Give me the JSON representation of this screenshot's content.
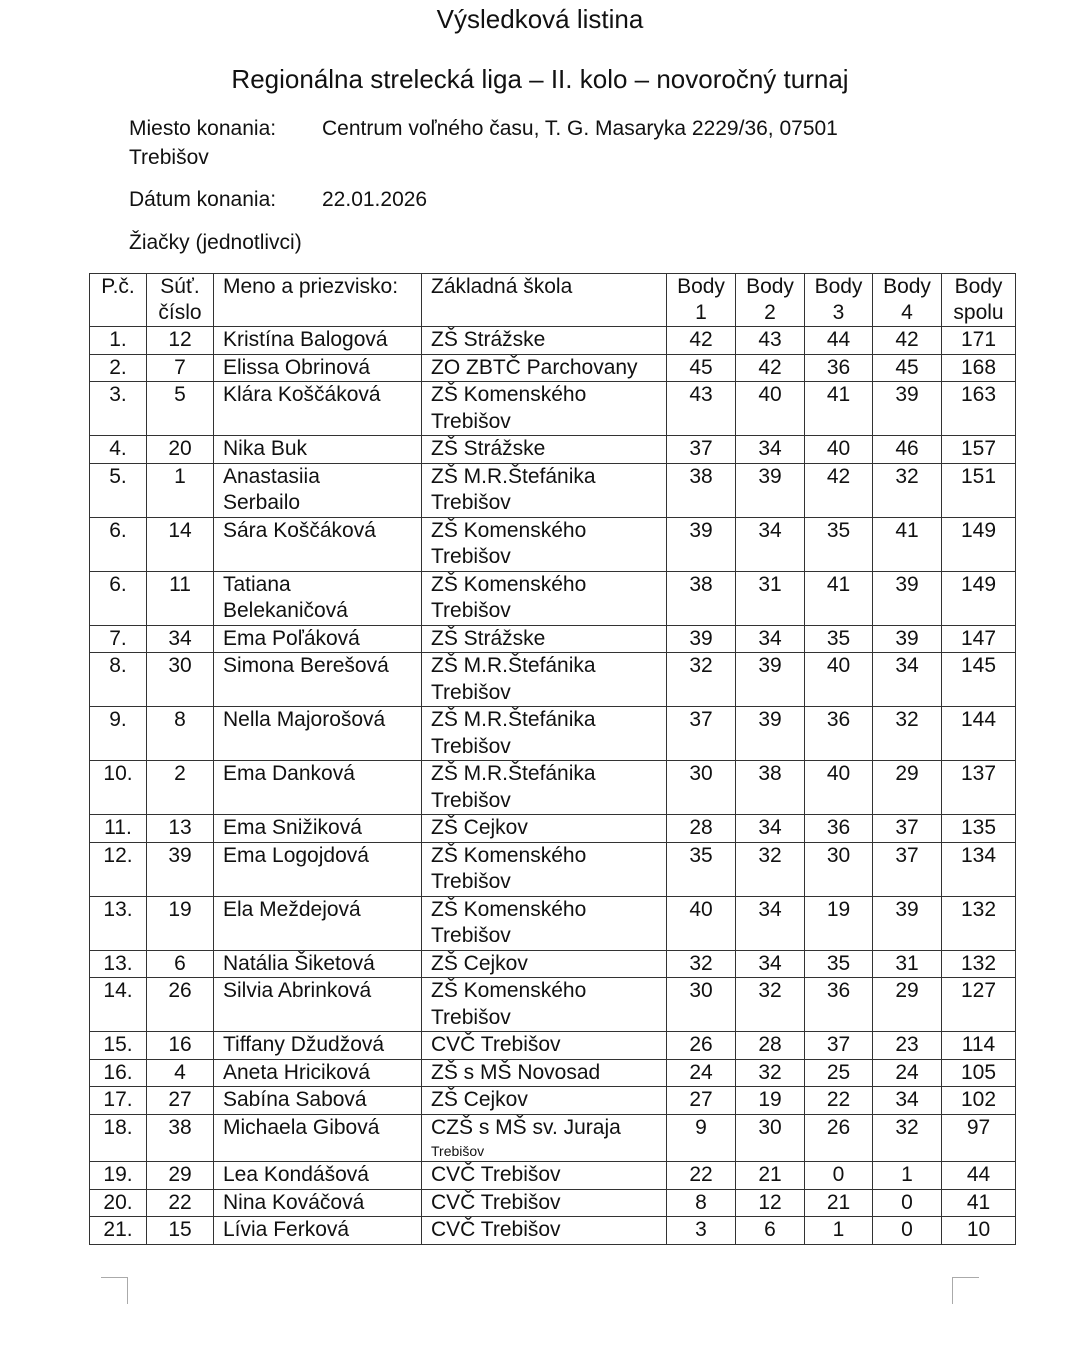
{
  "title": "Výsledková listina",
  "subtitle": "Regionálna strelecká liga – II. kolo – novoročný turnaj",
  "venue_label": "Miesto konania:",
  "venue_value": "Centrum voľného času, T. G. Masaryka 2229/36, 07501",
  "venue_value2": "Trebišov",
  "date_label": "Dátum konania:",
  "date_value": "22.01.2026",
  "category": "Žiačky (jednotlivci)",
  "headers": [
    "P.č.",
    "Súť.\nčíslo",
    "Meno a priezvisko:",
    "Základná škola",
    "Body\n1",
    "Body\n2",
    "Body\n3",
    "Body\n4",
    "Body\nspolu"
  ],
  "rows": [
    {
      "rank": "1.",
      "num": "12",
      "name": "Kristína Balogová",
      "school": "ZŠ Strážske",
      "b": [
        "42",
        "43",
        "44",
        "42",
        "171"
      ]
    },
    {
      "rank": "2.",
      "num": "7",
      "name": "Elissa Obrinová",
      "school": "ZO ZBTČ Parchovany",
      "b": [
        "45",
        "42",
        "36",
        "45",
        "168"
      ]
    },
    {
      "rank": "3.",
      "num": "5",
      "name": "Klára Koščáková",
      "school": "ZŠ Komenského\nTrebišov",
      "b": [
        "43",
        "40",
        "41",
        "39",
        "163"
      ]
    },
    {
      "rank": "4.",
      "num": "20",
      "name": "Nika Buk",
      "school": "ZŠ Strážske",
      "b": [
        "37",
        "34",
        "40",
        "46",
        "157"
      ]
    },
    {
      "rank": "5.",
      "num": "1",
      "name": "Anastasiia\nSerbailo",
      "school": "ZŠ M.R.Štefánika\nTrebišov",
      "b": [
        "38",
        "39",
        "42",
        "32",
        "151"
      ]
    },
    {
      "rank": "6.",
      "num": "14",
      "name": "Sára Koščáková",
      "school": "ZŠ Komenského\nTrebišov",
      "b": [
        "39",
        "34",
        "35",
        "41",
        "149"
      ]
    },
    {
      "rank": "6.",
      "num": "11",
      "name": "Tatiana\nBelekaničová",
      "school": "ZŠ Komenského\nTrebišov",
      "b": [
        "38",
        "31",
        "41",
        "39",
        "149"
      ]
    },
    {
      "rank": "7.",
      "num": "34",
      "name": "Ema Poľáková",
      "school": "ZŠ Strážske",
      "b": [
        "39",
        "34",
        "35",
        "39",
        "147"
      ]
    },
    {
      "rank": "8.",
      "num": "30",
      "name": "Simona Berešová",
      "school": "ZŠ M.R.Štefánika\nTrebišov",
      "b": [
        "32",
        "39",
        "40",
        "34",
        "145"
      ]
    },
    {
      "rank": "9.",
      "num": "8",
      "name": "Nella Majorošová",
      "school": "ZŠ M.R.Štefánika\nTrebišov",
      "b": [
        "37",
        "39",
        "36",
        "32",
        "144"
      ]
    },
    {
      "rank": "10.",
      "num": "2",
      "name": "Ema Danková",
      "school": "ZŠ M.R.Štefánika\nTrebišov",
      "b": [
        "30",
        "38",
        "40",
        "29",
        "137"
      ]
    },
    {
      "rank": "11.",
      "num": "13",
      "name": "Ema Snižiková",
      "school": "ZŠ Cejkov",
      "b": [
        "28",
        "34",
        "36",
        "37",
        "135"
      ]
    },
    {
      "rank": "12.",
      "num": "39",
      "name": "Ema Logojdová",
      "school": "ZŠ Komenského\nTrebišov",
      "b": [
        "35",
        "32",
        "30",
        "37",
        "134"
      ]
    },
    {
      "rank": "13.",
      "num": "19",
      "name": "Ela Meždejová",
      "school": "ZŠ Komenského\nTrebišov",
      "b": [
        "40",
        "34",
        "19",
        "39",
        "132"
      ]
    },
    {
      "rank": "13.",
      "num": "6",
      "name": "Natália Šiketová",
      "school": "ZŠ Cejkov",
      "b": [
        "32",
        "34",
        "35",
        "31",
        "132"
      ]
    },
    {
      "rank": "14.",
      "num": "26",
      "name": "Silvia Abrinková",
      "school": "ZŠ Komenského\nTrebišov",
      "b": [
        "30",
        "32",
        "36",
        "29",
        "127"
      ]
    },
    {
      "rank": "15.",
      "num": "16",
      "name": "Tiffany Džudžová",
      "school": "CVČ Trebišov",
      "b": [
        "26",
        "28",
        "37",
        "23",
        "114"
      ]
    },
    {
      "rank": "16.",
      "num": "4",
      "name": "Aneta  Hriciková",
      "school": "ZŠ s MŠ Novosad",
      "b": [
        "24",
        "32",
        "25",
        "24",
        "105"
      ]
    },
    {
      "rank": "17.",
      "num": "27",
      "name": "Sabína Sabová",
      "school": "ZŠ Cejkov",
      "b": [
        "27",
        "19",
        "22",
        "34",
        "102"
      ]
    },
    {
      "rank": "18.",
      "num": "38",
      "name": "Michaela Gibová",
      "school": "CZŠ s MŠ sv. Juraja",
      "school_note": "Trebišov",
      "b": [
        "9",
        "30",
        "26",
        "32",
        "97"
      ]
    },
    {
      "rank": "19.",
      "num": "29",
      "name": "Lea Kondášová",
      "school": "CVČ Trebišov",
      "b": [
        "22",
        "21",
        "0",
        "1",
        "44"
      ]
    },
    {
      "rank": "20.",
      "num": "22",
      "name": "Nina Kováčová",
      "school": "CVČ Trebišov",
      "b": [
        "8",
        "12",
        "21",
        "0",
        "41"
      ]
    },
    {
      "rank": "21.",
      "num": "15",
      "name": "Lívia Ferková",
      "school": "CVČ Trebišov",
      "b": [
        "3",
        "6",
        "1",
        "0",
        "10"
      ]
    }
  ]
}
